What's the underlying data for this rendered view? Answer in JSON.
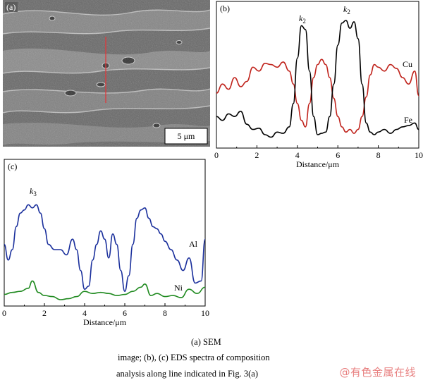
{
  "panel_a": {
    "label": "(a)",
    "scale_bar_text": "5 μm",
    "line_color": "#e0383b"
  },
  "chart_data": [
    {
      "type": "line",
      "panel": "(b)",
      "xlabel": "Distance/μm",
      "ylabel": "",
      "xlim": [
        0,
        10
      ],
      "x_ticks": [
        "0",
        "2",
        "4",
        "6",
        "8",
        "10"
      ],
      "grid": false,
      "annotations": [
        "k2",
        "k2"
      ],
      "series": [
        {
          "name": "Cu",
          "color": "#c0231c",
          "x": [
            0,
            0.3,
            0.6,
            0.9,
            1.2,
            1.5,
            1.8,
            2.1,
            2.4,
            2.7,
            3.0,
            3.3,
            3.6,
            3.8,
            4.0,
            4.2,
            4.4,
            4.6,
            4.8,
            5.0,
            5.2,
            5.4,
            5.6,
            5.8,
            6.0,
            6.2,
            6.4,
            6.6,
            6.8,
            7.0,
            7.2,
            7.4,
            7.6,
            7.8,
            8.0,
            8.3,
            8.6,
            8.9,
            9.2,
            9.5,
            9.8,
            10.0
          ],
          "values": [
            0.38,
            0.45,
            0.41,
            0.5,
            0.43,
            0.47,
            0.58,
            0.55,
            0.61,
            0.6,
            0.58,
            0.62,
            0.55,
            0.45,
            0.3,
            0.17,
            0.12,
            0.3,
            0.5,
            0.6,
            0.64,
            0.6,
            0.5,
            0.34,
            0.2,
            0.12,
            0.08,
            0.1,
            0.07,
            0.1,
            0.2,
            0.35,
            0.52,
            0.6,
            0.58,
            0.55,
            0.6,
            0.57,
            0.5,
            0.45,
            0.55,
            0.36
          ]
        },
        {
          "name": "Fe",
          "color": "#000000",
          "x": [
            0,
            0.3,
            0.6,
            0.9,
            1.2,
            1.5,
            1.8,
            2.1,
            2.4,
            2.7,
            3.0,
            3.3,
            3.6,
            3.8,
            4.0,
            4.2,
            4.4,
            4.6,
            4.8,
            5.0,
            5.2,
            5.4,
            5.6,
            5.8,
            6.0,
            6.2,
            6.4,
            6.6,
            6.8,
            7.0,
            7.2,
            7.4,
            7.6,
            7.8,
            8.0,
            8.3,
            8.6,
            8.9,
            9.2,
            9.5,
            9.8,
            10.0
          ],
          "values": [
            0.2,
            0.17,
            0.22,
            0.2,
            0.24,
            0.14,
            0.1,
            0.11,
            0.06,
            0.04,
            0.08,
            0.07,
            0.12,
            0.3,
            0.65,
            0.9,
            0.87,
            0.55,
            0.2,
            0.06,
            0.07,
            0.08,
            0.2,
            0.45,
            0.75,
            0.92,
            0.94,
            0.88,
            0.93,
            0.8,
            0.45,
            0.15,
            0.08,
            0.06,
            0.08,
            0.1,
            0.07,
            0.1,
            0.12,
            0.13,
            0.15,
            0.1
          ]
        }
      ]
    },
    {
      "type": "line",
      "panel": "(c)",
      "xlabel": "Distance/μm",
      "ylabel": "",
      "xlim": [
        0,
        10
      ],
      "x_ticks": [
        "0",
        "2",
        "4",
        "6",
        "8",
        "10"
      ],
      "grid": false,
      "annotations": [
        "k3"
      ],
      "series": [
        {
          "name": "Al",
          "color": "#1a2f9c",
          "x": [
            0,
            0.2,
            0.4,
            0.6,
            0.8,
            1.0,
            1.2,
            1.4,
            1.6,
            1.8,
            2.0,
            2.2,
            2.5,
            2.8,
            3.1,
            3.4,
            3.6,
            3.8,
            4.0,
            4.2,
            4.4,
            4.6,
            4.8,
            5.0,
            5.2,
            5.4,
            5.6,
            5.8,
            6.0,
            6.2,
            6.4,
            6.6,
            6.8,
            7.0,
            7.2,
            7.4,
            7.6,
            7.8,
            8.0,
            8.3,
            8.6,
            8.9,
            9.2,
            9.5,
            9.8,
            10.0
          ],
          "values": [
            0.55,
            0.4,
            0.5,
            0.72,
            0.85,
            0.88,
            0.93,
            0.9,
            0.93,
            0.85,
            0.7,
            0.55,
            0.5,
            0.5,
            0.45,
            0.6,
            0.5,
            0.3,
            0.12,
            0.15,
            0.4,
            0.55,
            0.68,
            0.6,
            0.42,
            0.65,
            0.55,
            0.3,
            0.1,
            0.25,
            0.55,
            0.8,
            0.88,
            0.9,
            0.8,
            0.72,
            0.7,
            0.65,
            0.58,
            0.5,
            0.4,
            0.3,
            0.42,
            0.18,
            0.2,
            0.6
          ]
        },
        {
          "name": "Ni",
          "color": "#1f8a1f",
          "x": [
            0,
            0.4,
            0.8,
            1.2,
            1.4,
            1.7,
            2.0,
            2.4,
            2.8,
            3.2,
            3.6,
            4.0,
            4.4,
            4.8,
            5.2,
            5.6,
            6.0,
            6.4,
            6.8,
            7.0,
            7.3,
            7.6,
            8.0,
            8.4,
            8.8,
            9.2,
            9.6,
            10.0
          ],
          "values": [
            0.07,
            0.09,
            0.1,
            0.13,
            0.2,
            0.09,
            0.06,
            0.05,
            0.02,
            0.03,
            0.05,
            0.1,
            0.08,
            0.09,
            0.08,
            0.06,
            0.07,
            0.1,
            0.14,
            0.17,
            0.06,
            0.08,
            0.05,
            0.06,
            0.04,
            0.12,
            0.08,
            0.14
          ]
        }
      ]
    }
  ],
  "caption": {
    "line1": "(a)  SEM",
    "line2": "image;  (b),  (c)  EDS  spectra  of  composition",
    "line3": "analysis along line indicated in Fig. 3(a)"
  },
  "watermark": "@有色金属在线"
}
